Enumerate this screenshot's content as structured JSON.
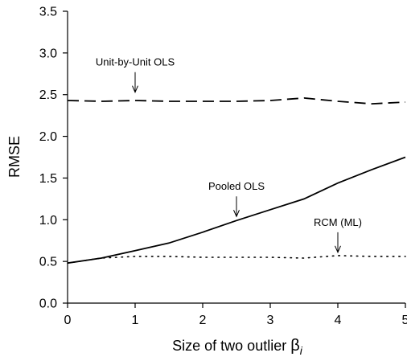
{
  "chart_data": {
    "type": "line",
    "title": "",
    "xlabel": "Size of two outlier ",
    "xlabel_symbol": "β",
    "xlabel_subscript": "i",
    "ylabel": "RMSE",
    "xlim": [
      0,
      5
    ],
    "ylim": [
      0,
      3.5
    ],
    "xticks": [
      "0",
      "1",
      "2",
      "3",
      "4",
      "5"
    ],
    "yticks": [
      "0.0",
      "0.5",
      "1.0",
      "1.5",
      "2.0",
      "2.5",
      "3.0",
      "3.5"
    ],
    "grid": false,
    "series": [
      {
        "name": "Unit-by-Unit OLS",
        "style": "dashed",
        "x": [
          0,
          0.5,
          1,
          1.5,
          2,
          2.5,
          3,
          3.5,
          4,
          4.5,
          5
        ],
        "y": [
          2.43,
          2.42,
          2.43,
          2.42,
          2.42,
          2.42,
          2.43,
          2.46,
          2.42,
          2.39,
          2.41
        ]
      },
      {
        "name": "Pooled OLS",
        "style": "solid",
        "x": [
          0,
          0.5,
          1,
          1.5,
          2,
          2.5,
          3,
          3.5,
          4,
          4.5,
          5
        ],
        "y": [
          0.48,
          0.54,
          0.63,
          0.72,
          0.85,
          0.99,
          1.12,
          1.25,
          1.44,
          1.6,
          1.75
        ]
      },
      {
        "name": "RCM (ML)",
        "style": "dotted",
        "x": [
          0,
          0.5,
          1,
          1.5,
          2,
          2.5,
          3,
          3.5,
          4,
          4.5,
          5
        ],
        "y": [
          0.48,
          0.54,
          0.56,
          0.56,
          0.55,
          0.55,
          0.55,
          0.54,
          0.57,
          0.56,
          0.56
        ]
      }
    ],
    "annotations": [
      {
        "text": "Unit-by-Unit OLS",
        "x": 1.0,
        "y": 2.5
      },
      {
        "text": "Pooled OLS",
        "x": 2.5,
        "y": 1.01
      },
      {
        "text": "RCM (ML)",
        "x": 4.0,
        "y": 0.58
      }
    ]
  }
}
